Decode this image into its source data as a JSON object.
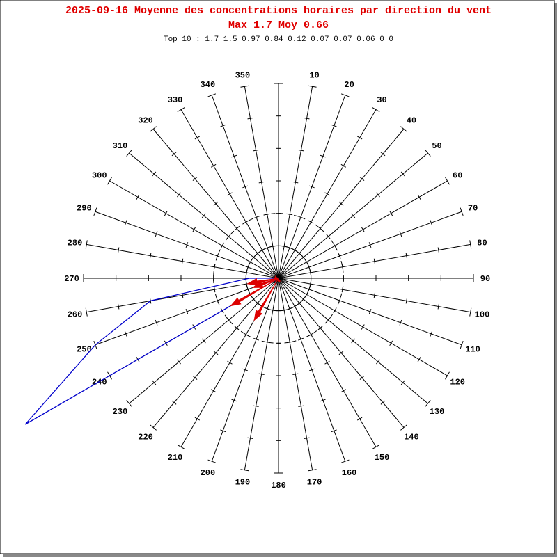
{
  "chart_data": {
    "type": "polar",
    "title": "2025-09-16 Moyenne des concentrations horaires par direction du vent",
    "subtitle": "Max 1.7 Moy 0.66",
    "annotation": "Top 10 : 1.7 1.5 0.97 0.84 0.12 0.07 0.07 0.06 0 0",
    "categories": [
      null,
      "10",
      "20",
      "30",
      "40",
      "50",
      "60",
      "70",
      "80",
      "90",
      "100",
      "110",
      "120",
      "130",
      "140",
      "150",
      "160",
      "170",
      "180",
      "190",
      "200",
      "210",
      "220",
      "230",
      "240",
      "250",
      "260",
      "270",
      "280",
      "290",
      "300",
      "310",
      "320",
      "330",
      "340",
      "350"
    ],
    "rlim": [
      0,
      6
    ],
    "rticks": [
      1,
      2,
      3,
      4,
      5,
      6
    ],
    "circles": [
      {
        "value": 1,
        "style": "solid"
      },
      {
        "value": 2,
        "style": "dashed"
      }
    ],
    "series": [
      {
        "color": "#0000cc",
        "style": "polygon",
        "values": [
          0,
          0,
          0,
          0,
          0,
          0,
          0,
          0,
          0,
          0,
          0,
          0,
          0,
          0,
          0,
          0,
          0,
          0,
          0,
          0,
          0,
          0,
          0,
          0,
          9,
          6,
          4,
          0.9,
          0,
          0,
          0,
          0,
          0,
          0,
          0,
          0
        ]
      },
      {
        "color": "#dd0000",
        "style": "arrow",
        "values": [
          0,
          0,
          0,
          0,
          0,
          0,
          0,
          0,
          0,
          0,
          0,
          0,
          0,
          0,
          0,
          0,
          0,
          0,
          0,
          0,
          0.06,
          1.5,
          0.07,
          0.07,
          1.7,
          0.84,
          0.97,
          0.12,
          0,
          0,
          0,
          0,
          0,
          0,
          0,
          0
        ]
      }
    ]
  }
}
